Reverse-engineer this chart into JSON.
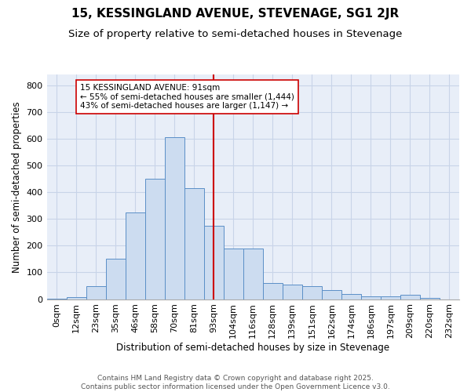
{
  "title": "15, KESSINGLAND AVENUE, STEVENAGE, SG1 2JR",
  "subtitle": "Size of property relative to semi-detached houses in Stevenage",
  "xlabel": "Distribution of semi-detached houses by size in Stevenage",
  "ylabel": "Number of semi-detached properties",
  "categories": [
    "0sqm",
    "12sqm",
    "23sqm",
    "35sqm",
    "46sqm",
    "58sqm",
    "70sqm",
    "81sqm",
    "93sqm",
    "104sqm",
    "116sqm",
    "128sqm",
    "139sqm",
    "151sqm",
    "162sqm",
    "174sqm",
    "186sqm",
    "197sqm",
    "209sqm",
    "220sqm",
    "232sqm"
  ],
  "bar_heights": [
    2,
    8,
    50,
    150,
    325,
    450,
    605,
    415,
    275,
    190,
    190,
    60,
    55,
    50,
    35,
    20,
    10,
    10,
    15,
    5,
    0
  ],
  "bar_color": "#ccdcf0",
  "bar_edge_color": "#5b8fc7",
  "vline_x": 8,
  "vline_color": "#cc0000",
  "annotation_line1": "15 KESSINGLAND AVENUE: 91sqm",
  "annotation_line2": "← 55% of semi-detached houses are smaller (1,444)",
  "annotation_line3": "43% of semi-detached houses are larger (1,147) →",
  "annotation_box_color": "white",
  "annotation_box_edge_color": "#cc0000",
  "ylim": [
    0,
    840
  ],
  "yticks": [
    0,
    100,
    200,
    300,
    400,
    500,
    600,
    700,
    800
  ],
  "grid_color": "#c8d4e8",
  "bg_color": "#e8eef8",
  "footer_text": "Contains HM Land Registry data © Crown copyright and database right 2025.\nContains public sector information licensed under the Open Government Licence v3.0.",
  "title_fontsize": 11,
  "subtitle_fontsize": 9.5,
  "axis_label_fontsize": 8.5,
  "tick_fontsize": 8,
  "annotation_fontsize": 7.5,
  "footer_fontsize": 6.5
}
